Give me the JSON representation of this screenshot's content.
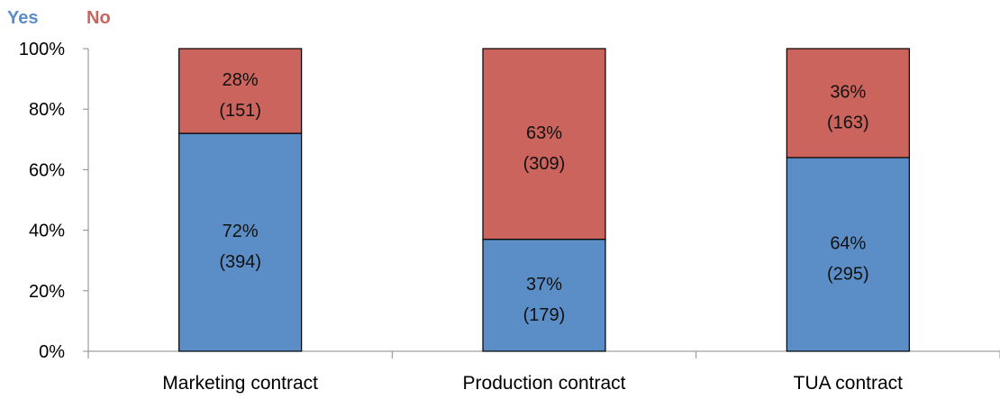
{
  "chart_data": {
    "type": "bar",
    "stacked": true,
    "percent_stacked": true,
    "categories": [
      "Marketing contract",
      "Production contract",
      "TUA contract"
    ],
    "series": [
      {
        "name": "Yes",
        "color": "#5b8ec7",
        "values": [
          72,
          37,
          64
        ],
        "counts": [
          394,
          179,
          295
        ],
        "labels": [
          "72%",
          "37%",
          "64%"
        ],
        "count_labels": [
          "(394)",
          "(179)",
          "(295)"
        ]
      },
      {
        "name": "No",
        "color": "#cb645c",
        "values": [
          28,
          63,
          36
        ],
        "counts": [
          151,
          309,
          163
        ],
        "labels": [
          "28%",
          "63%",
          "36%"
        ],
        "count_labels": [
          "(151)",
          "(309)",
          "(163)"
        ]
      }
    ],
    "yticks": [
      "0%",
      "20%",
      "40%",
      "60%",
      "80%",
      "100%"
    ],
    "ylim": [
      0,
      100
    ],
    "legend_position": "top-left",
    "grid": false
  }
}
